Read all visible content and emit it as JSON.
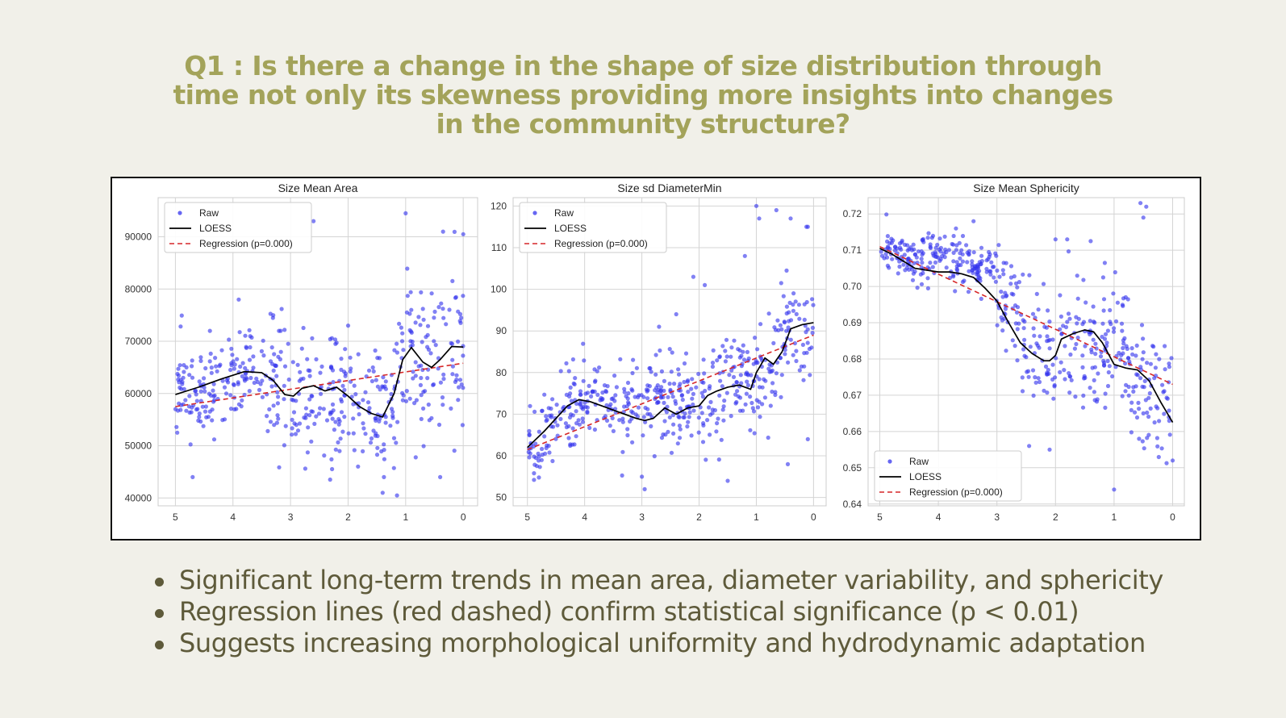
{
  "question": {
    "line1": "Q1 : Is there a change in the shape of size distribution through",
    "line2": "time not only its skewness providing more insights into changes",
    "line3": "in the community structure?"
  },
  "colors": {
    "background": "#f1f0e9",
    "title": "#a3a35a",
    "text": "#5e5a3a",
    "raw": "#3333ee",
    "loess": "#000000",
    "regression": "#d62728"
  },
  "chart_data": [
    {
      "type": "scatter",
      "title": "Size Mean Area",
      "xlabel": "",
      "ylabel": "",
      "xlim": [
        5.3,
        -0.25
      ],
      "ylim": [
        38500,
        97500
      ],
      "x_ticks": [
        5,
        4,
        3,
        2,
        1,
        0
      ],
      "y_ticks": [
        40000,
        50000,
        60000,
        70000,
        80000,
        90000
      ],
      "grid": true,
      "legend_position": "top-left",
      "legend": [
        "Raw",
        "LOESS",
        "Regression (p=0.000)"
      ],
      "raw_points": {
        "count": 500,
        "seed": 11,
        "segments": [
          {
            "x": [
              5,
              3.4
            ],
            "mean": [
              60000,
              64000
            ],
            "spread": 5500
          },
          {
            "x": [
              3.4,
              1.2
            ],
            "mean": [
              62000,
              56000
            ],
            "spread": 9000
          },
          {
            "x": [
              1.2,
              0
            ],
            "mean": [
              66000,
              68000
            ],
            "spread": 11000
          }
        ],
        "outliers": [
          [
            3.9,
            78000
          ],
          [
            4.4,
            72000
          ],
          [
            3.3,
            75000
          ],
          [
            3.2,
            72000
          ],
          [
            2.6,
            93000
          ],
          [
            1.0,
            94500
          ],
          [
            0.35,
            91000
          ],
          [
            0.0,
            90500
          ],
          [
            4.7,
            44000
          ],
          [
            1.4,
            41000
          ],
          [
            1.15,
            40500
          ],
          [
            0.4,
            44000
          ],
          [
            2.0,
            73000
          ]
        ]
      },
      "loess": {
        "x": [
          5,
          4.6,
          4.2,
          3.8,
          3.5,
          3.3,
          3.1,
          2.95,
          2.8,
          2.6,
          2.4,
          2.2,
          2.0,
          1.8,
          1.6,
          1.4,
          1.2,
          1.05,
          0.9,
          0.7,
          0.55,
          0.4,
          0.2,
          0
        ],
        "y": [
          59800,
          61200,
          62800,
          64200,
          64000,
          62500,
          59800,
          59500,
          61000,
          61500,
          60500,
          61200,
          59500,
          57500,
          56200,
          55500,
          60000,
          66500,
          68800,
          66000,
          65000,
          66500,
          69000,
          68900
        ]
      },
      "regression": {
        "x": [
          5,
          0
        ],
        "y": [
          57500,
          65800
        ]
      }
    },
    {
      "type": "scatter",
      "title": "Size sd DiameterMin",
      "xlabel": "",
      "ylabel": "",
      "xlim": [
        5.25,
        -0.22
      ],
      "ylim": [
        48,
        122
      ],
      "x_ticks": [
        5,
        4,
        3,
        2,
        1,
        0
      ],
      "y_ticks": [
        50,
        60,
        70,
        80,
        90,
        100,
        110,
        120
      ],
      "grid": true,
      "legend_position": "top-left",
      "legend": [
        "Raw",
        "LOESS",
        "Regression (p=0.000)"
      ],
      "raw_points": {
        "count": 520,
        "seed": 23,
        "segments": [
          {
            "x": [
              5,
              4.2
            ],
            "mean": [
              62,
              73
            ],
            "spread": 6
          },
          {
            "x": [
              4.2,
              2.0
            ],
            "mean": [
              73,
              73
            ],
            "spread": 6.5
          },
          {
            "x": [
              2.0,
              0.6
            ],
            "mean": [
              75,
              82
            ],
            "spread": 8
          },
          {
            "x": [
              0.6,
              0
            ],
            "mean": [
              88,
              93
            ],
            "spread": 9
          }
        ],
        "outliers": [
          [
            2.1,
            103
          ],
          [
            1.9,
            101
          ],
          [
            1.0,
            120
          ],
          [
            0.95,
            117
          ],
          [
            0.65,
            119
          ],
          [
            0.4,
            117
          ],
          [
            0.1,
            115
          ],
          [
            2.95,
            52
          ],
          [
            3.0,
            55
          ],
          [
            1.5,
            54
          ],
          [
            0.45,
            58
          ],
          [
            0.1,
            64
          ],
          [
            1.2,
            108
          ],
          [
            2.4,
            94
          ],
          [
            2.7,
            91
          ]
        ]
      },
      "loess": {
        "x": [
          5,
          4.7,
          4.5,
          4.3,
          4.1,
          3.9,
          3.7,
          3.5,
          3.3,
          3.1,
          2.95,
          2.8,
          2.6,
          2.4,
          2.2,
          2.0,
          1.85,
          1.7,
          1.5,
          1.3,
          1.1,
          1.0,
          0.85,
          0.7,
          0.55,
          0.4,
          0.2,
          0
        ],
        "y": [
          62,
          66,
          69,
          72,
          73.5,
          73,
          72,
          71,
          70,
          69,
          68.5,
          69,
          71.5,
          70,
          71.5,
          72,
          74.5,
          75.5,
          76.5,
          77,
          76,
          80,
          83.5,
          82,
          85,
          90.5,
          91.5,
          92
        ]
      },
      "regression": {
        "x": [
          5,
          0
        ],
        "y": [
          61.5,
          89
        ]
      }
    },
    {
      "type": "scatter",
      "title": "Size Mean Sphericity",
      "xlabel": "",
      "ylabel": "",
      "xlim": [
        5.2,
        -0.2
      ],
      "ylim": [
        0.6395,
        0.7245
      ],
      "x_ticks": [
        5,
        4,
        3,
        2,
        1,
        0
      ],
      "y_ticks": [
        0.64,
        0.65,
        0.66,
        0.67,
        0.68,
        0.69,
        0.7,
        0.71,
        0.72
      ],
      "grid": true,
      "legend_position": "bottom-left",
      "legend": [
        "Raw",
        "LOESS",
        "Regression (p=0.000)"
      ],
      "raw_points": {
        "count": 520,
        "seed": 37,
        "segments": [
          {
            "x": [
              5,
              3.0
            ],
            "mean": [
              0.71,
              0.704
            ],
            "spread": 0.0045
          },
          {
            "x": [
              3.0,
              2.0
            ],
            "mean": [
              0.695,
              0.68
            ],
            "spread": 0.011
          },
          {
            "x": [
              2.0,
              0.8
            ],
            "mean": [
              0.685,
              0.683
            ],
            "spread": 0.011
          },
          {
            "x": [
              0.8,
              0
            ],
            "mean": [
              0.678,
              0.666
            ],
            "spread": 0.011
          }
        ],
        "outliers": [
          [
            3.4,
            0.718
          ],
          [
            3.7,
            0.716
          ],
          [
            2.0,
            0.713
          ],
          [
            1.8,
            0.713
          ],
          [
            1.4,
            0.7125
          ],
          [
            0.55,
            0.723
          ],
          [
            0.45,
            0.722
          ],
          [
            0.5,
            0.719
          ],
          [
            2.45,
            0.656
          ],
          [
            2.1,
            0.655
          ],
          [
            1.0,
            0.644
          ],
          [
            0.0,
            0.652
          ],
          [
            0.5,
            0.665
          ]
        ]
      },
      "loess": {
        "x": [
          5,
          4.8,
          4.6,
          4.4,
          4.2,
          4.0,
          3.8,
          3.6,
          3.4,
          3.2,
          3.0,
          2.8,
          2.6,
          2.4,
          2.2,
          2.1,
          2.0,
          1.9,
          1.7,
          1.5,
          1.35,
          1.2,
          1.0,
          0.8,
          0.6,
          0.4,
          0.2,
          0
        ],
        "y": [
          0.7105,
          0.709,
          0.707,
          0.705,
          0.7045,
          0.704,
          0.704,
          0.7035,
          0.7025,
          0.6995,
          0.696,
          0.69,
          0.6845,
          0.6815,
          0.6795,
          0.6795,
          0.681,
          0.6855,
          0.687,
          0.688,
          0.6875,
          0.6845,
          0.6785,
          0.6775,
          0.677,
          0.674,
          0.668,
          0.6625
        ]
      },
      "regression": {
        "x": [
          5,
          0
        ],
        "y": [
          0.711,
          0.673
        ]
      }
    }
  ],
  "bullets": [
    "Significant long-term trends in mean area, diameter variability, and sphericity",
    "Regression lines (red dashed) confirm statistical significance (p < 0.01)",
    "Suggests increasing morphological uniformity and hydrodynamic adaptation"
  ]
}
